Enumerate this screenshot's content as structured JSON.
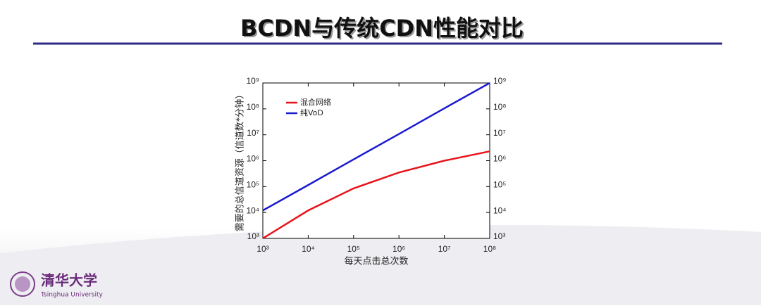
{
  "chart_data": {
    "type": "line",
    "title": "BCDN与传统CDN性能对比",
    "xlabel": "每天点击总次数",
    "ylabel": "需要的总信道资源（信道数*分钟）",
    "x": [
      1000,
      10000,
      100000,
      1000000,
      10000000,
      100000000
    ],
    "series": [
      {
        "name": "混合网络",
        "color": "#e8141b",
        "values": [
          1000,
          12000,
          85000,
          350000,
          1000000,
          2300000
        ]
      },
      {
        "name": "纯VoD",
        "color": "#1a1ad0",
        "values": [
          12000,
          115000,
          1120000,
          10700000,
          105000000,
          1000000000
        ]
      }
    ],
    "xlog": true,
    "ylog": true,
    "legend": "upper left",
    "xlim": [
      1000,
      100000000
    ],
    "xticks": [
      {
        "value": 1000,
        "label": "10³"
      },
      {
        "value": 10000,
        "label": "10⁴"
      },
      {
        "value": 100000,
        "label": "10⁵"
      },
      {
        "value": 1000000,
        "label": "10⁶"
      },
      {
        "value": 10000000,
        "label": "10⁷"
      },
      {
        "value": 100000000,
        "label": "10⁸"
      }
    ],
    "ylim": [
      1000,
      1000000000
    ],
    "yticks": [
      {
        "value": 1000,
        "label": "10³"
      },
      {
        "value": 10000,
        "label": "10⁴"
      },
      {
        "value": 100000,
        "label": "10⁵"
      },
      {
        "value": 1000000,
        "label": "10⁶"
      },
      {
        "value": 10000000,
        "label": "10⁷"
      },
      {
        "value": 100000000,
        "label": "10⁸"
      },
      {
        "value": 1000000000,
        "label": "10⁹"
      }
    ],
    "y2lim": [
      1000,
      1000000000
    ],
    "y2ticks": [
      {
        "value": 1000,
        "label": "10³"
      },
      {
        "value": 10000,
        "label": "10⁴"
      },
      {
        "value": 100000,
        "label": "10⁵"
      },
      {
        "value": 1000000,
        "label": "10⁶"
      },
      {
        "value": 10000000,
        "label": "10⁷"
      },
      {
        "value": 100000000,
        "label": "10⁸"
      },
      {
        "value": 1000000000,
        "label": "10⁹"
      }
    ]
  },
  "logo": {
    "name": "清华大学",
    "subtitle": "Tsinghua University"
  }
}
